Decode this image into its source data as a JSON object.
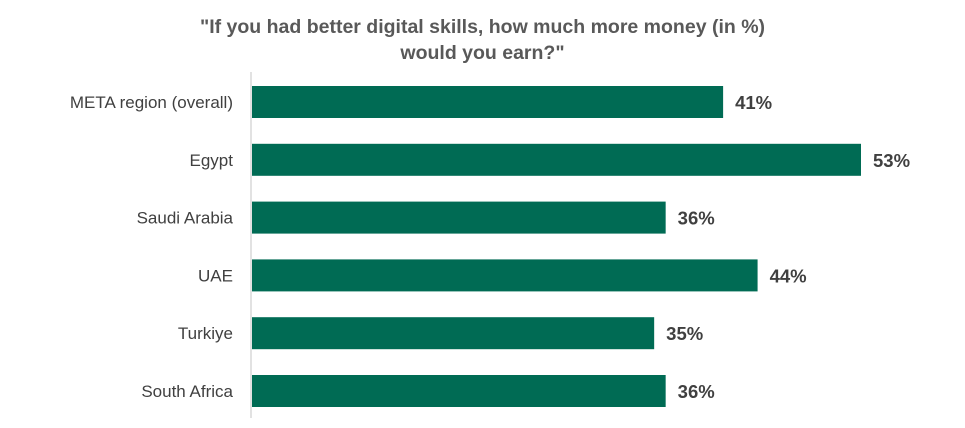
{
  "chart_data": {
    "type": "bar",
    "orientation": "horizontal",
    "title_line1": "\"If you had better digital skills, how much more money (in %)",
    "title_line2": "would you earn?\"",
    "categories": [
      "META region (overall)",
      "Egypt",
      "Saudi Arabia",
      "UAE",
      "Turkiye",
      "South Africa"
    ],
    "values": [
      41,
      53,
      36,
      44,
      35,
      36
    ],
    "value_labels": [
      "41%",
      "53%",
      "36%",
      "44%",
      "35%",
      "36%"
    ],
    "xlim": [
      0,
      53
    ],
    "grid": false,
    "legend": "none",
    "bar_color": "#006B54",
    "axis_color": "#D9D9D9"
  }
}
